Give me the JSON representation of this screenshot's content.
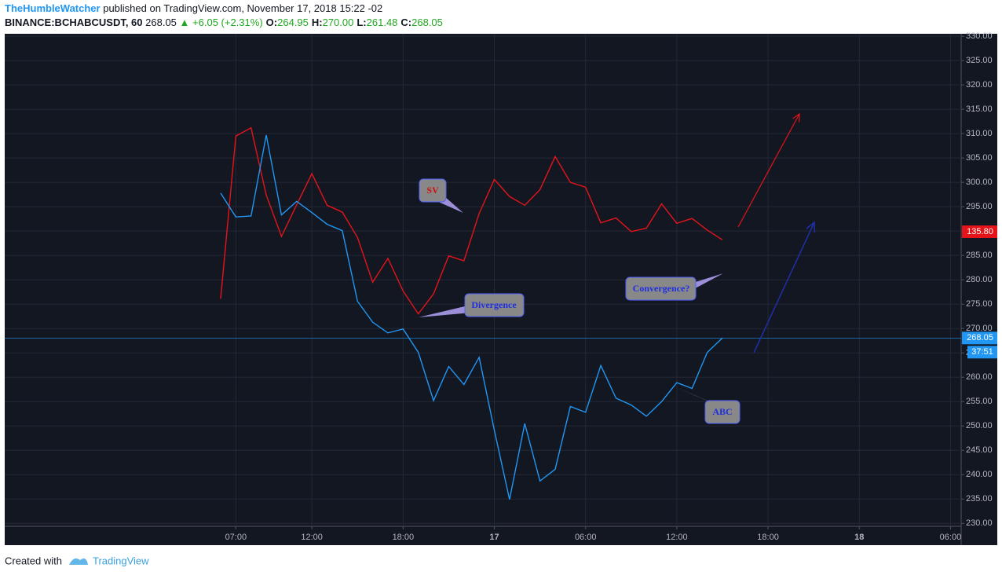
{
  "header": {
    "author": "TheHumbleWatcher",
    "published": "published on TradingView.com, November 17, 2018 15:22 -02"
  },
  "chart_data": {
    "type": "line",
    "symbol": "BINANCE:BCHABCUSDT, 60",
    "last": "268.05",
    "change": "+6.05 (+2.31%)",
    "ohlc": [
      {
        "key": "O:",
        "value": "264.95"
      },
      {
        "key": "H:",
        "value": "270.00"
      },
      {
        "key": "L:",
        "value": "261.48"
      },
      {
        "key": "C:",
        "value": "268.05"
      }
    ],
    "x": [
      6,
      7,
      8,
      9,
      10,
      11,
      12,
      13,
      14,
      15,
      16,
      17,
      18,
      19,
      20,
      21,
      22,
      23,
      24,
      25,
      26,
      27,
      28,
      29,
      30,
      31,
      32,
      33,
      34,
      35,
      36,
      37,
      38,
      39
    ],
    "series": [
      {
        "color": "#e5141a",
        "last_label": "135.80",
        "values": [
          276.1,
          309.5,
          311.2,
          297.4,
          288.9,
          295.4,
          301.8,
          295.3,
          293.9,
          288.7,
          279.5,
          284.4,
          277.7,
          273.0,
          277.1,
          284.9,
          283.9,
          293.6,
          300.6,
          297.1,
          295.3,
          298.5,
          305.3,
          300.0,
          299.0,
          291.7,
          292.7,
          289.9,
          290.6,
          295.6,
          291.6,
          292.6,
          290.2,
          288.2
        ]
      },
      {
        "color": "#2196f3",
        "last_label": "268.05",
        "countdown": "37:51",
        "values": [
          297.8,
          292.9,
          293.1,
          309.7,
          293.3,
          296.1,
          293.8,
          291.4,
          290.1,
          275.6,
          271.3,
          269.1,
          269.9,
          265.1,
          255.2,
          262.2,
          258.5,
          264.1,
          249.1,
          234.9,
          250.5,
          238.7,
          241.1,
          254.0,
          252.8,
          262.4,
          255.7,
          254.3,
          252.0,
          255.0,
          258.9,
          257.7,
          265.1,
          268.05
        ]
      }
    ],
    "xlim": [
      -8.2,
      54.7
    ],
    "xticks": [
      {
        "value": 7,
        "label": "07:00"
      },
      {
        "value": 12,
        "label": "12:00"
      },
      {
        "value": 18,
        "label": "18:00"
      },
      {
        "value": 24,
        "label": "17"
      },
      {
        "value": 30,
        "label": "06:00"
      },
      {
        "value": 36,
        "label": "12:00"
      },
      {
        "value": 42,
        "label": "18:00"
      },
      {
        "value": 48,
        "label": "18"
      },
      {
        "value": 54,
        "label": "06:00"
      }
    ],
    "ylim": [
      229.4,
      330.5
    ],
    "yticks": [
      {
        "value": 230,
        "label": "230.00"
      },
      {
        "value": 235,
        "label": "235.00"
      },
      {
        "value": 240,
        "label": "240.00"
      },
      {
        "value": 245,
        "label": "245.00"
      },
      {
        "value": 250,
        "label": "250.00"
      },
      {
        "value": 255,
        "label": "255.00"
      },
      {
        "value": 260,
        "label": "260.00"
      },
      {
        "value": 265,
        "label": "265.00"
      },
      {
        "value": 270,
        "label": "270.00"
      },
      {
        "value": 275,
        "label": "275.00"
      },
      {
        "value": 280,
        "label": "280.00"
      },
      {
        "value": 285,
        "label": "285.00"
      },
      {
        "value": 290,
        "label": "290.00"
      },
      {
        "value": 295,
        "label": "295.00"
      },
      {
        "value": 300,
        "label": "300.00"
      },
      {
        "value": 305,
        "label": "305.00"
      },
      {
        "value": 310,
        "label": "310.00"
      },
      {
        "value": 315,
        "label": "315.00"
      },
      {
        "value": 320,
        "label": "320.00"
      },
      {
        "value": 325,
        "label": "325.00"
      },
      {
        "value": 330,
        "label": "330.00"
      }
    ],
    "grid": true,
    "annotations": [
      "SV",
      "Divergence",
      "Convergence?",
      "ABC"
    ]
  },
  "footer": {
    "created": "Created with",
    "brand": "TradingView"
  }
}
